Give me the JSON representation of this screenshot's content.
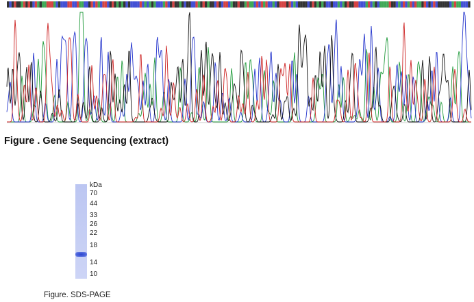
{
  "chromatogram": {
    "base_colors": {
      "A": "#1f9a3a",
      "C": "#2233cc",
      "G": "#111111",
      "T": "#cc2222"
    }
  },
  "figure1": {
    "caption": "Figure . Gene Sequencing (extract)"
  },
  "gel": {
    "unit_label": "kDa",
    "markers": [
      "70",
      "44",
      "33",
      "26",
      "22",
      "18",
      "14",
      "10"
    ],
    "band_marker_between": [
      "18",
      "14"
    ]
  },
  "figure2": {
    "caption": "Figure. SDS-PAGE"
  }
}
